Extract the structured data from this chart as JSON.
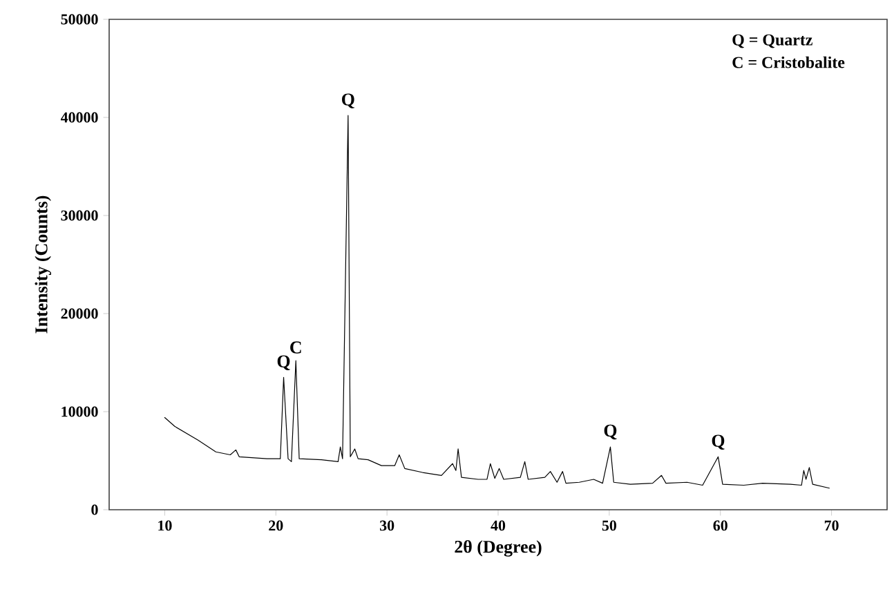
{
  "chart_data": {
    "type": "line",
    "xlabel": "2θ (Degree)",
    "ylabel": "Intensity (Counts)",
    "x": [
      10,
      10.9,
      13,
      14.6,
      15.9,
      16.4,
      16.7,
      19.2,
      20.4,
      20.7,
      21.1,
      21.4,
      21.8,
      22.1,
      24.1,
      25.6,
      25.8,
      26.0,
      26.5,
      26.7,
      27.1,
      27.4,
      28.3,
      29.5,
      30.7,
      31.1,
      31.6,
      33.2,
      34.9,
      35.9,
      36.2,
      36.4,
      36.7,
      38.2,
      39.0,
      39.3,
      39.7,
      40.1,
      40.5,
      42.0,
      42.4,
      42.7,
      44.2,
      44.7,
      45.3,
      45.8,
      46.1,
      47.3,
      48.6,
      49.4,
      50.1,
      50.4,
      51.9,
      53.9,
      54.7,
      55.1,
      57.0,
      58.4,
      59.8,
      60.2,
      62.1,
      63.8,
      66.3,
      67.3,
      67.5,
      67.7,
      68.0,
      68.3,
      69.8
    ],
    "series": [
      {
        "color": "#000000",
        "values": [
          9400,
          8500,
          7100,
          5900,
          5600,
          6100,
          5400,
          5200,
          5200,
          13500,
          5200,
          4900,
          15200,
          5200,
          5100,
          4900,
          6400,
          5200,
          40200,
          5400,
          6200,
          5200,
          5100,
          4500,
          4500,
          5600,
          4200,
          3800,
          3500,
          4700,
          4000,
          6200,
          3300,
          3100,
          3100,
          4700,
          3200,
          4200,
          3100,
          3300,
          4900,
          3100,
          3300,
          3900,
          2800,
          3900,
          2700,
          2800,
          3100,
          2700,
          6400,
          2800,
          2600,
          2700,
          3500,
          2700,
          2800,
          2500,
          5400,
          2600,
          2500,
          2700,
          2600,
          2500,
          4000,
          3100,
          4300,
          2600,
          2200
        ]
      }
    ],
    "xlim": [
      5,
      75
    ],
    "xticks": [
      10,
      20,
      30,
      40,
      50,
      60,
      70
    ],
    "ylim": [
      0,
      50000
    ],
    "yticks": [
      0,
      10000,
      20000,
      30000,
      40000,
      50000
    ],
    "grid": false,
    "marker": "none",
    "line_style": "solid",
    "annotations": [
      {
        "text": "Q",
        "x": 20.7,
        "y": 13500
      },
      {
        "text": "C",
        "x": 21.8,
        "y": 15200
      },
      {
        "text": "Q",
        "x": 26.5,
        "y": 40200
      },
      {
        "text": "Q",
        "x": 50.1,
        "y": 6440
      },
      {
        "text": "Q",
        "x": 59.8,
        "y": 5400
      },
      "Q = Quartz",
      "C = Cristobalite"
    ]
  }
}
